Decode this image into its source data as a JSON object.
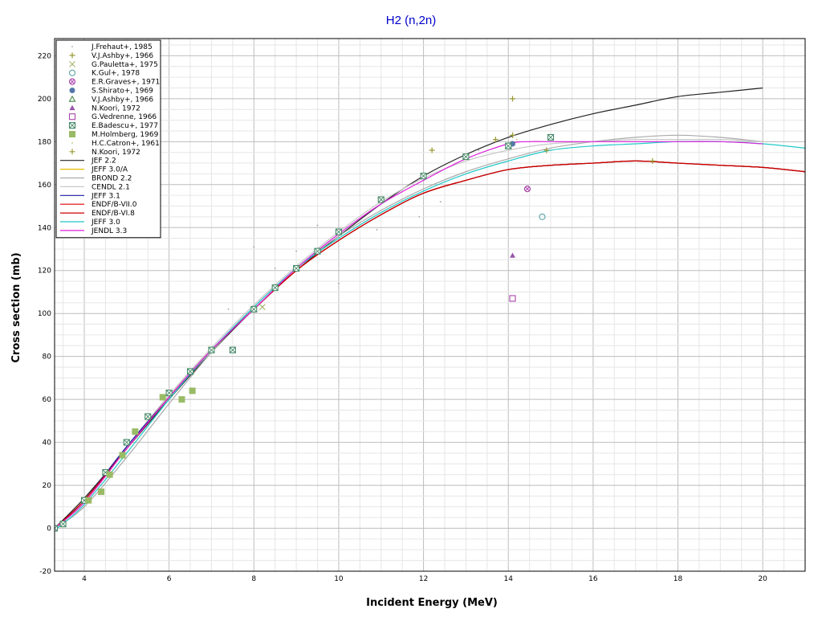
{
  "chart_data": {
    "type": "scatter",
    "title": "H2 (n,2n)",
    "xlabel": "Incident Energy (MeV)",
    "ylabel": "Cross section (mb)",
    "xlim": [
      3.3,
      21.0
    ],
    "ylim": [
      -20,
      228
    ],
    "xticks": [
      4,
      6,
      8,
      10,
      12,
      14,
      16,
      18,
      20
    ],
    "yticks": [
      -20,
      0,
      20,
      40,
      60,
      80,
      100,
      120,
      140,
      160,
      180,
      200,
      220
    ],
    "grid": true,
    "legend_position": "top-left",
    "colors": {
      "title": "#0000cc",
      "grid_major": "#bdbdbd",
      "grid_minor": "#e6e6e6"
    },
    "series": [
      {
        "name": "J.Frehaut+, 1985",
        "kind": "points",
        "marker": "dot",
        "color": "#9aa0a0",
        "x": [
          7.4,
          8.0,
          8.5,
          9.0,
          9.5,
          10.0,
          10.9,
          11.9,
          12.4,
          13.3,
          14.1
        ],
        "y": [
          102,
          131,
          121,
          129,
          141,
          114,
          139,
          145,
          152,
          176,
          182
        ]
      },
      {
        "name": "V.J.Ashby+, 1966",
        "kind": "points",
        "marker": "plus",
        "color": "#999933",
        "x": [
          12.2,
          13.7,
          14.1,
          14.1,
          17.4
        ],
        "y": [
          176,
          181,
          200,
          183,
          171
        ]
      },
      {
        "name": "G.Pauletta+, 1975",
        "kind": "points",
        "marker": "x",
        "color": "#99aa55",
        "x": [
          8.2
        ],
        "y": [
          103
        ]
      },
      {
        "name": "K.Gul+, 1978",
        "kind": "points",
        "marker": "circle",
        "color": "#66aaaa",
        "x": [
          14.8
        ],
        "y": [
          145
        ]
      },
      {
        "name": "E.R.Graves+, 1971",
        "kind": "points",
        "marker": "circle-x",
        "color": "#aa44aa",
        "x": [
          14.45
        ],
        "y": [
          158
        ]
      },
      {
        "name": "S.Shirato+, 1969",
        "kind": "points",
        "marker": "filled-circle",
        "color": "#5577aa",
        "x": [
          14.1
        ],
        "y": [
          179
        ]
      },
      {
        "name": "V.J.Ashby+, 1966",
        "kind": "points",
        "marker": "triangle",
        "color": "#448844",
        "x": [
          14.0
        ],
        "y": [
          178
        ]
      },
      {
        "name": "N.Koori, 1972",
        "kind": "points",
        "marker": "filled-triangle",
        "color": "#9955aa",
        "x": [
          14.1
        ],
        "y": [
          127
        ]
      },
      {
        "name": "G.Vedrenne, 1966",
        "kind": "points",
        "marker": "square",
        "color": "#aa44aa",
        "x": [
          14.1
        ],
        "y": [
          107
        ]
      },
      {
        "name": "E.Badescu+, 1977",
        "kind": "points",
        "marker": "square-x",
        "color": "#448866",
        "x": [
          3.3,
          3.5,
          4.0,
          4.5,
          5.0,
          5.5,
          6.0,
          6.5,
          7.0,
          7.5,
          8.0,
          8.5,
          9.0,
          9.5,
          10.0,
          11.0,
          12.0,
          13.0,
          14.0,
          15.0
        ],
        "y": [
          0,
          2,
          13,
          26,
          40,
          52,
          63,
          73,
          83,
          83,
          102,
          112,
          121,
          129,
          138,
          153,
          164,
          173,
          178,
          182
        ]
      },
      {
        "name": "M.Holmberg, 1969",
        "kind": "points",
        "marker": "filled-square",
        "color": "#99bb66",
        "x": [
          4.1,
          4.4,
          4.6,
          4.9,
          5.2,
          5.85,
          6.3,
          6.55
        ],
        "y": [
          13,
          17,
          25,
          34,
          45,
          61,
          60,
          64
        ]
      },
      {
        "name": "H.C.Catron+, 1961",
        "kind": "points",
        "marker": "dot",
        "color": "#bbbb66",
        "x": [
          14.2
        ],
        "y": [
          181
        ]
      },
      {
        "name": "N.Koori, 1972",
        "kind": "points",
        "marker": "plus",
        "color": "#999933",
        "x": [
          14.9
        ],
        "y": [
          176
        ]
      },
      {
        "name": "JEF 2.2",
        "kind": "line",
        "color": "#222222",
        "x": [
          3.3,
          4,
          5,
          6,
          7,
          8,
          9,
          10,
          11,
          12,
          13,
          14,
          15,
          16,
          17,
          18,
          19,
          20
        ],
        "y": [
          0,
          14,
          37,
          60,
          82,
          102,
          120,
          136,
          151,
          164,
          174,
          182,
          188,
          193,
          197,
          201,
          203,
          205
        ]
      },
      {
        "name": "JEFF 3.0/A",
        "kind": "line",
        "color": "#e8b800",
        "x": [
          3.3,
          4,
          5,
          6,
          7,
          8,
          9,
          10,
          11,
          12,
          13,
          14,
          15,
          16,
          17,
          18,
          19,
          20,
          21
        ],
        "y": [
          0,
          12,
          37,
          61,
          83,
          102,
          120,
          134,
          146,
          156,
          162,
          167,
          169,
          170,
          171,
          170,
          169,
          168,
          166
        ]
      },
      {
        "name": "BROND 2.2",
        "kind": "line",
        "color": "#aaaaaa",
        "x": [
          3.3,
          4,
          5,
          6,
          7,
          8,
          9,
          10,
          11,
          12,
          13,
          14,
          15,
          16,
          17,
          18,
          19,
          20
        ],
        "y": [
          0,
          10,
          33,
          58,
          82,
          103,
          121,
          136,
          148,
          158,
          166,
          172,
          177,
          180,
          182,
          183,
          182,
          180
        ]
      },
      {
        "name": "CENDL 2.1",
        "kind": "line",
        "color": "#c8c8c8",
        "x": [
          3.3,
          4,
          5,
          6,
          7,
          8,
          9,
          10,
          11,
          12,
          13,
          14,
          15,
          16,
          17,
          18,
          19,
          20
        ],
        "y": [
          0,
          13,
          38,
          62,
          84,
          104,
          122,
          138,
          152,
          163,
          171,
          176,
          179,
          180,
          181,
          181,
          181,
          180
        ]
      },
      {
        "name": "JEFF 3.1",
        "kind": "line",
        "color": "#1a1aa0",
        "x": [
          3.3,
          4,
          5,
          6,
          7,
          8,
          9,
          10,
          11,
          12,
          13,
          14,
          15,
          16,
          17,
          18,
          19,
          20,
          21
        ],
        "y": [
          0,
          13,
          38,
          61,
          83,
          102,
          120,
          134,
          146,
          156,
          162,
          167,
          169,
          170,
          171,
          170,
          169,
          168,
          166
        ]
      },
      {
        "name": "ENDF/B-VII.0",
        "kind": "line",
        "color": "#dd0000",
        "x": [
          3.3,
          4,
          5,
          6,
          7,
          8,
          9,
          10,
          11,
          12,
          13,
          14,
          15,
          16,
          17,
          18,
          19,
          20,
          21
        ],
        "y": [
          0,
          13,
          37,
          61,
          83,
          102,
          120,
          134,
          146,
          156,
          162,
          167,
          169,
          170,
          171,
          170,
          169,
          168,
          166
        ]
      },
      {
        "name": "ENDF/B-VI.8",
        "kind": "line",
        "color": "#cc0000",
        "x": [
          3.3,
          4,
          5,
          6,
          7,
          8,
          9,
          10,
          11,
          12,
          13,
          14,
          15,
          16,
          17,
          18,
          19,
          20,
          21
        ],
        "y": [
          0,
          13,
          37,
          61,
          83,
          102,
          120,
          134,
          146,
          156,
          162,
          167,
          169,
          170,
          171,
          170,
          169,
          168,
          166
        ]
      },
      {
        "name": "JEFF 3.0",
        "kind": "line",
        "color": "#22c8c8",
        "x": [
          3.3,
          4,
          5,
          6,
          7,
          8,
          9,
          10,
          11,
          12,
          13,
          14,
          15,
          16,
          17,
          18,
          19,
          20,
          21
        ],
        "y": [
          -1,
          11,
          35,
          60,
          83,
          103,
          121,
          135,
          147,
          157,
          165,
          171,
          176,
          178,
          179,
          180,
          180,
          179,
          177
        ]
      },
      {
        "name": "JENDL 3.3",
        "kind": "line",
        "color": "#dd22dd",
        "x": [
          3.3,
          4,
          5,
          6,
          7,
          8,
          9,
          10,
          11,
          12,
          13,
          14,
          14.5,
          15,
          16,
          17,
          18,
          19,
          20
        ],
        "y": [
          0,
          12,
          37,
          61,
          83,
          102,
          121,
          137,
          151,
          162,
          172,
          179,
          180,
          180,
          180,
          180,
          180,
          180,
          179
        ]
      }
    ]
  }
}
